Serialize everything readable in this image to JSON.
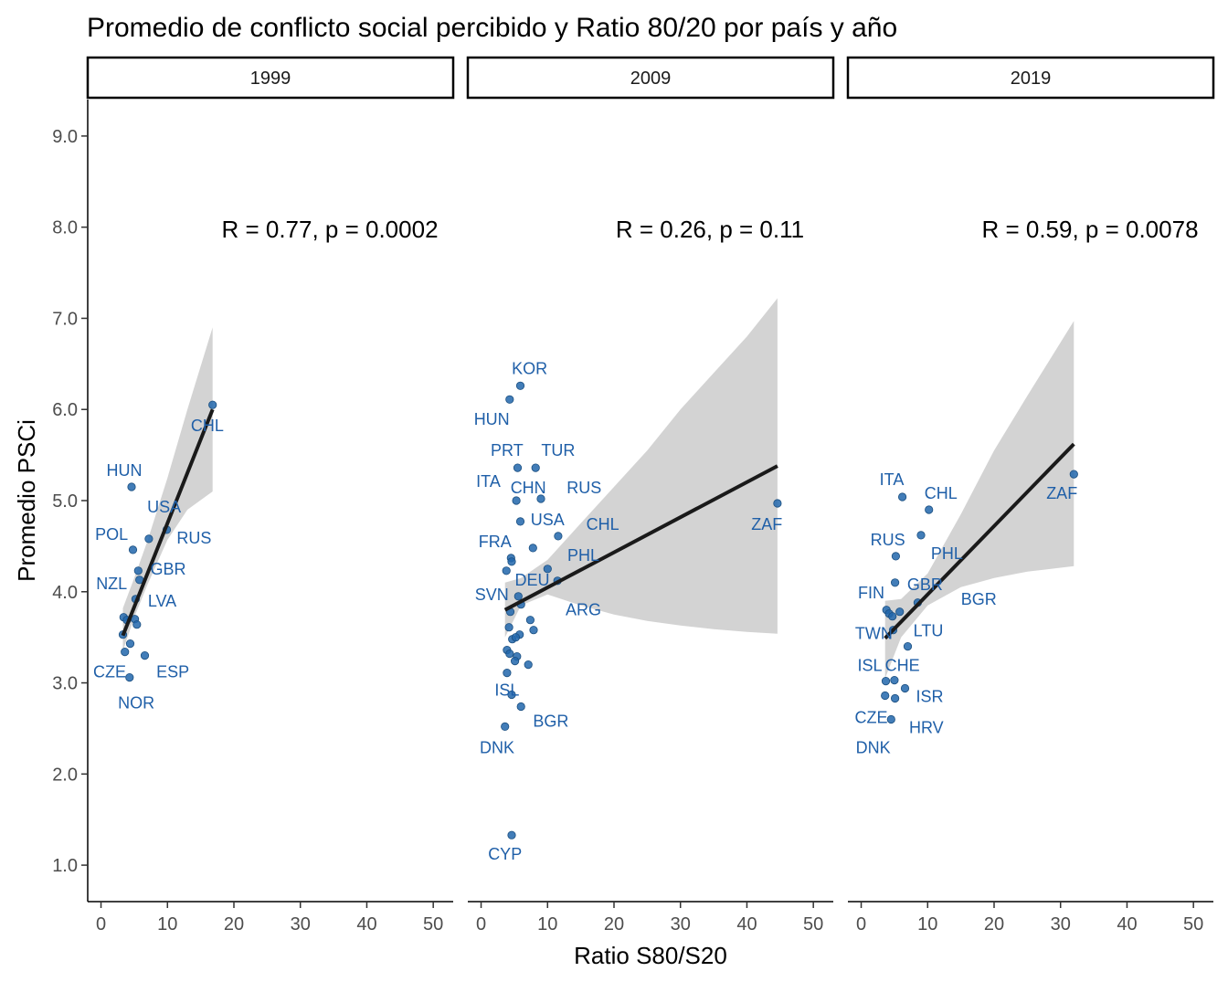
{
  "chart_data": {
    "type": "scatter",
    "title": "Promedio de conflicto social percibido y Ratio 80/20 por país y año",
    "xlabel": "Ratio S80/S20",
    "ylabel": "Promedio PSCi",
    "xlim": [
      -2,
      53
    ],
    "ylim": [
      0.6,
      9.4
    ],
    "x_ticks": [
      0,
      10,
      20,
      30,
      40,
      50
    ],
    "x_tick_labels": [
      "0",
      "10",
      "20",
      "30",
      "40",
      "50"
    ],
    "y_ticks": [
      1,
      2,
      3,
      4,
      5,
      6,
      7,
      8,
      9
    ],
    "y_tick_labels": [
      "1.0",
      "2.0",
      "3.0",
      "4.0",
      "5.0",
      "6.0",
      "7.0",
      "8.0",
      "9.0"
    ],
    "grid": false,
    "point_color": "#2166AC",
    "line_color": "#1a1a1a",
    "band_color": "#D3D3D3",
    "label_color": "#1F5FA8",
    "panels": [
      {
        "facet": "1999",
        "annotation": "R = 0.77, p = 0.0002",
        "points": [
          {
            "x": 16.8,
            "y": 6.05
          },
          {
            "x": 4.6,
            "y": 5.15
          },
          {
            "x": 9.9,
            "y": 4.68
          },
          {
            "x": 7.2,
            "y": 4.58
          },
          {
            "x": 4.8,
            "y": 4.46
          },
          {
            "x": 5.6,
            "y": 4.23
          },
          {
            "x": 5.8,
            "y": 4.13
          },
          {
            "x": 5.2,
            "y": 3.92
          },
          {
            "x": 3.4,
            "y": 3.72
          },
          {
            "x": 3.9,
            "y": 3.69
          },
          {
            "x": 5.1,
            "y": 3.7
          },
          {
            "x": 5.4,
            "y": 3.64
          },
          {
            "x": 3.3,
            "y": 3.53
          },
          {
            "x": 4.4,
            "y": 3.43
          },
          {
            "x": 3.6,
            "y": 3.34
          },
          {
            "x": 6.6,
            "y": 3.3
          },
          {
            "x": 4.3,
            "y": 3.06
          }
        ],
        "labels": [
          {
            "text": "CHL",
            "x": 16.0,
            "y": 5.82
          },
          {
            "text": "HUN",
            "x": 3.5,
            "y": 5.33
          },
          {
            "text": "USA",
            "x": 9.5,
            "y": 4.93
          },
          {
            "text": "POL",
            "x": 1.6,
            "y": 4.63
          },
          {
            "text": "RUS",
            "x": 14.0,
            "y": 4.59
          },
          {
            "text": "GBR",
            "x": 10.1,
            "y": 4.25
          },
          {
            "text": "NZL",
            "x": 1.6,
            "y": 4.09
          },
          {
            "text": "LVA",
            "x": 9.2,
            "y": 3.9
          },
          {
            "text": "CZE",
            "x": 1.3,
            "y": 3.12
          },
          {
            "text": "ESP",
            "x": 10.8,
            "y": 3.12
          },
          {
            "text": "NOR",
            "x": 5.3,
            "y": 2.78
          }
        ],
        "fit": {
          "x": [
            3.3,
            16.8
          ],
          "y": [
            3.52,
            6.0
          ]
        },
        "band": {
          "x": [
            3.3,
            5.0,
            7.0,
            10.0,
            13.0,
            16.8
          ],
          "lower": [
            3.35,
            3.72,
            4.08,
            4.57,
            4.9,
            5.1
          ],
          "upper": [
            3.82,
            4.15,
            4.56,
            5.25,
            6.0,
            6.9
          ]
        }
      },
      {
        "facet": "2009",
        "annotation": "R = 0.26, p = 0.11",
        "points": [
          {
            "x": 5.9,
            "y": 6.26
          },
          {
            "x": 4.3,
            "y": 6.11
          },
          {
            "x": 5.5,
            "y": 5.36
          },
          {
            "x": 8.2,
            "y": 5.36
          },
          {
            "x": 5.3,
            "y": 5.0
          },
          {
            "x": 9.0,
            "y": 5.02
          },
          {
            "x": 5.9,
            "y": 4.77
          },
          {
            "x": 11.6,
            "y": 4.61
          },
          {
            "x": 44.6,
            "y": 4.97
          },
          {
            "x": 7.8,
            "y": 4.48
          },
          {
            "x": 4.5,
            "y": 4.37
          },
          {
            "x": 4.6,
            "y": 4.33
          },
          {
            "x": 3.8,
            "y": 4.23
          },
          {
            "x": 10.0,
            "y": 4.25
          },
          {
            "x": 11.5,
            "y": 4.12
          },
          {
            "x": 5.6,
            "y": 3.95
          },
          {
            "x": 6.0,
            "y": 3.86
          },
          {
            "x": 4.4,
            "y": 3.78
          },
          {
            "x": 7.4,
            "y": 3.69
          },
          {
            "x": 4.2,
            "y": 3.61
          },
          {
            "x": 7.9,
            "y": 3.58
          },
          {
            "x": 5.8,
            "y": 3.53
          },
          {
            "x": 4.7,
            "y": 3.48
          },
          {
            "x": 5.2,
            "y": 3.5
          },
          {
            "x": 3.9,
            "y": 3.36
          },
          {
            "x": 4.3,
            "y": 3.32
          },
          {
            "x": 5.4,
            "y": 3.29
          },
          {
            "x": 5.1,
            "y": 3.24
          },
          {
            "x": 7.1,
            "y": 3.2
          },
          {
            "x": 3.9,
            "y": 3.11
          },
          {
            "x": 4.6,
            "y": 2.87
          },
          {
            "x": 6.0,
            "y": 2.74
          },
          {
            "x": 3.6,
            "y": 2.52
          },
          {
            "x": 4.6,
            "y": 1.33
          }
        ],
        "labels": [
          {
            "text": "KOR",
            "x": 7.3,
            "y": 4.45,
            "ypos": 6.45
          },
          {
            "text": "HUN",
            "x": 1.6,
            "y": 5.89
          },
          {
            "text": "PRT",
            "x": 3.9,
            "y": 5.55
          },
          {
            "text": "TUR",
            "x": 11.6,
            "y": 5.55
          },
          {
            "text": "ITA",
            "x": 1.1,
            "y": 5.21
          },
          {
            "text": "CHN",
            "x": 7.1,
            "y": 5.14
          },
          {
            "text": "RUS",
            "x": 15.5,
            "y": 5.14
          },
          {
            "text": "USA",
            "x": 10.0,
            "y": 4.79
          },
          {
            "text": "CHL",
            "x": 18.3,
            "y": 4.74
          },
          {
            "text": "FRA",
            "x": 2.1,
            "y": 4.55
          },
          {
            "text": "PHL",
            "x": 15.4,
            "y": 4.4
          },
          {
            "text": "ZAF",
            "x": 43.0,
            "y": 4.74
          },
          {
            "text": "DEU",
            "x": 7.7,
            "y": 4.13
          },
          {
            "text": "SVN",
            "x": 1.6,
            "y": 3.97
          },
          {
            "text": "ARG",
            "x": 15.4,
            "y": 3.8
          },
          {
            "text": "ISL",
            "x": 3.9,
            "y": 2.92
          },
          {
            "text": "BGR",
            "x": 10.5,
            "y": 2.58
          },
          {
            "text": "DNK",
            "x": 2.4,
            "y": 2.29
          },
          {
            "text": "CYP",
            "x": 3.6,
            "y": 1.12
          }
        ],
        "fit": {
          "x": [
            3.6,
            44.6
          ],
          "y": [
            3.8,
            5.38
          ]
        },
        "band": {
          "x": [
            3.6,
            6.0,
            10.0,
            15.0,
            20.0,
            25.0,
            30.0,
            35.0,
            40.0,
            44.6
          ],
          "lower": [
            3.5,
            3.85,
            3.97,
            3.85,
            3.75,
            3.68,
            3.63,
            3.59,
            3.56,
            3.54
          ],
          "upper": [
            4.1,
            4.15,
            4.35,
            4.75,
            5.15,
            5.55,
            6.0,
            6.4,
            6.8,
            7.22
          ]
        }
      },
      {
        "facet": "2019",
        "annotation": "R = 0.59, p = 0.0078",
        "points": [
          {
            "x": 6.2,
            "y": 5.04
          },
          {
            "x": 10.2,
            "y": 4.9
          },
          {
            "x": 32.0,
            "y": 5.29
          },
          {
            "x": 9.0,
            "y": 4.62
          },
          {
            "x": 5.2,
            "y": 4.39
          },
          {
            "x": 5.1,
            "y": 4.1
          },
          {
            "x": 8.5,
            "y": 3.88
          },
          {
            "x": 3.8,
            "y": 3.8
          },
          {
            "x": 4.2,
            "y": 3.76
          },
          {
            "x": 5.8,
            "y": 3.78
          },
          {
            "x": 4.7,
            "y": 3.73
          },
          {
            "x": 4.8,
            "y": 3.58
          },
          {
            "x": 7.0,
            "y": 3.4
          },
          {
            "x": 3.7,
            "y": 3.02
          },
          {
            "x": 5.0,
            "y": 3.03
          },
          {
            "x": 6.6,
            "y": 2.94
          },
          {
            "x": 3.6,
            "y": 2.86
          },
          {
            "x": 5.1,
            "y": 2.83
          },
          {
            "x": 4.5,
            "y": 2.6
          }
        ],
        "labels": [
          {
            "text": "ITA",
            "x": 4.6,
            "y": 5.23
          },
          {
            "text": "CHL",
            "x": 12.0,
            "y": 5.08
          },
          {
            "text": "ZAF",
            "x": 30.2,
            "y": 5.08
          },
          {
            "text": "RUS",
            "x": 4.0,
            "y": 4.57
          },
          {
            "text": "PHL",
            "x": 12.9,
            "y": 4.42
          },
          {
            "text": "FIN",
            "x": 1.5,
            "y": 3.99
          },
          {
            "text": "GBR",
            "x": 9.6,
            "y": 4.08
          },
          {
            "text": "BGR",
            "x": 17.7,
            "y": 3.92
          },
          {
            "text": "TWN",
            "x": 1.9,
            "y": 3.54
          },
          {
            "text": "LTU",
            "x": 10.1,
            "y": 3.57
          },
          {
            "text": "ISL",
            "x": 1.3,
            "y": 3.19
          },
          {
            "text": "CHE",
            "x": 6.2,
            "y": 3.19
          },
          {
            "text": "ISR",
            "x": 10.3,
            "y": 2.85
          },
          {
            "text": "CZE",
            "x": 1.5,
            "y": 2.62
          },
          {
            "text": "HRV",
            "x": 9.8,
            "y": 2.51
          },
          {
            "text": "DNK",
            "x": 1.8,
            "y": 2.29
          }
        ],
        "fit": {
          "x": [
            3.6,
            32.0
          ],
          "y": [
            3.49,
            5.62
          ]
        },
        "band": {
          "x": [
            3.6,
            6.0,
            10.0,
            15.0,
            20.0,
            25.0,
            32.0
          ],
          "lower": [
            3.05,
            3.5,
            3.85,
            4.05,
            4.15,
            4.22,
            4.28
          ],
          "upper": [
            3.9,
            3.92,
            4.2,
            4.85,
            5.55,
            6.15,
            6.97
          ]
        }
      }
    ]
  }
}
